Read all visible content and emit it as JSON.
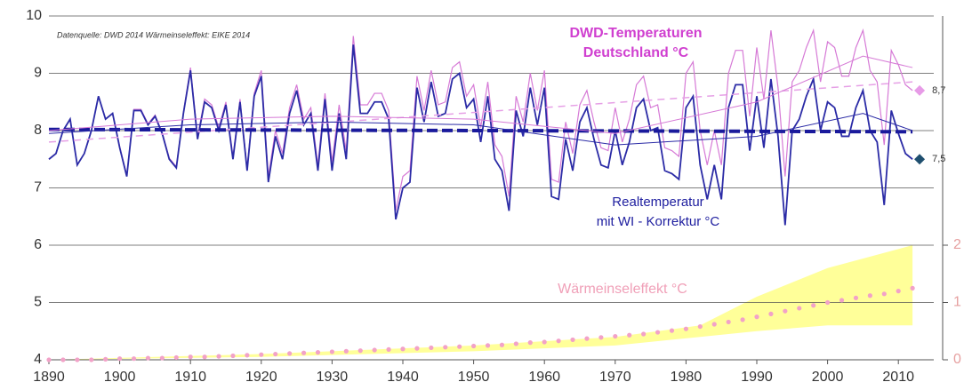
{
  "chart_data": {
    "type": "line",
    "source_note": "Datenquelle: DWD 2014 Wärmeinseleffekt: EIKE 2014",
    "xlim": [
      1890,
      2015
    ],
    "xticks": [
      1890,
      1900,
      1910,
      1920,
      1930,
      1940,
      1950,
      1960,
      1970,
      1980,
      1990,
      2000,
      2010
    ],
    "ylim": [
      4,
      10
    ],
    "yticks": [
      4,
      5,
      6,
      7,
      8,
      9,
      10
    ],
    "y2lim": [
      0,
      6
    ],
    "y2ticks": [
      0,
      1,
      2
    ],
    "grid": true,
    "x": [
      1890,
      1891,
      1892,
      1893,
      1894,
      1895,
      1896,
      1897,
      1898,
      1899,
      1900,
      1901,
      1902,
      1903,
      1904,
      1905,
      1906,
      1907,
      1908,
      1909,
      1910,
      1911,
      1912,
      1913,
      1914,
      1915,
      1916,
      1917,
      1918,
      1919,
      1920,
      1921,
      1922,
      1923,
      1924,
      1925,
      1926,
      1927,
      1928,
      1929,
      1930,
      1931,
      1932,
      1933,
      1934,
      1935,
      1936,
      1937,
      1938,
      1939,
      1940,
      1941,
      1942,
      1943,
      1944,
      1945,
      1946,
      1947,
      1948,
      1949,
      1950,
      1951,
      1952,
      1953,
      1954,
      1955,
      1956,
      1957,
      1958,
      1959,
      1960,
      1961,
      1962,
      1963,
      1964,
      1965,
      1966,
      1967,
      1968,
      1969,
      1970,
      1971,
      1972,
      1973,
      1974,
      1975,
      1976,
      1977,
      1978,
      1979,
      1980,
      1981,
      1982,
      1983,
      1984,
      1985,
      1986,
      1987,
      1988,
      1989,
      1990,
      1991,
      1992,
      1993,
      1994,
      1995,
      1996,
      1997,
      1998,
      1999,
      2000,
      2001,
      2002,
      2003,
      2004,
      2005,
      2006,
      2007,
      2008,
      2009,
      2010,
      2011,
      2012
    ],
    "series": [
      {
        "name": [
          "DWD-Temperaturen",
          "Deutschland °C"
        ],
        "color": "#d67ad6",
        "values": [
          7.5,
          7.6,
          8.0,
          8.2,
          7.4,
          7.6,
          8.0,
          8.6,
          8.2,
          8.3,
          7.72,
          7.22,
          8.37,
          8.37,
          8.12,
          8.27,
          7.97,
          7.52,
          7.37,
          8.32,
          9.1,
          7.9,
          8.55,
          8.45,
          8.05,
          8.5,
          7.55,
          8.55,
          7.35,
          8.65,
          9.05,
          7.2,
          8.0,
          7.6,
          8.4,
          8.8,
          8.2,
          8.4,
          7.4,
          8.65,
          7.45,
          8.45,
          7.65,
          9.65,
          8.45,
          8.45,
          8.65,
          8.65,
          8.35,
          6.6,
          7.2,
          7.3,
          8.95,
          8.35,
          9.05,
          8.45,
          8.5,
          9.1,
          9.2,
          8.6,
          8.8,
          8.05,
          8.85,
          7.75,
          7.55,
          6.85,
          8.6,
          8.15,
          9.0,
          8.35,
          9.05,
          7.15,
          7.1,
          8.15,
          7.6,
          8.45,
          8.7,
          8.15,
          7.7,
          7.65,
          8.4,
          7.8,
          8.2,
          8.8,
          8.95,
          8.4,
          8.45,
          7.7,
          7.65,
          7.55,
          9.0,
          9.2,
          8.0,
          7.4,
          8.0,
          7.4,
          9.0,
          9.4,
          9.4,
          8.25,
          9.45,
          8.55,
          9.75,
          8.75,
          7.2,
          8.85,
          9.05,
          9.45,
          9.75,
          8.85,
          9.55,
          9.45,
          8.95,
          8.95,
          9.45,
          9.75,
          9.05,
          8.85,
          7.75,
          9.4,
          9.15,
          8.8,
          8.7
        ]
      },
      {
        "name": [
          "Realtemperatur",
          "mit WI - Korrektur °C"
        ],
        "color": "#2b2ba6",
        "values": [
          7.5,
          7.6,
          8.0,
          8.2,
          7.4,
          7.6,
          8.0,
          8.6,
          8.2,
          8.3,
          7.7,
          7.2,
          8.35,
          8.35,
          8.1,
          8.25,
          7.95,
          7.5,
          7.35,
          8.3,
          9.05,
          7.85,
          8.5,
          8.4,
          8.0,
          8.45,
          7.5,
          8.5,
          7.3,
          8.6,
          8.95,
          7.1,
          7.9,
          7.5,
          8.3,
          8.7,
          8.1,
          8.3,
          7.3,
          8.55,
          7.3,
          8.3,
          7.5,
          9.5,
          8.3,
          8.3,
          8.5,
          8.5,
          8.2,
          6.45,
          7.0,
          7.1,
          8.75,
          8.15,
          8.85,
          8.25,
          8.3,
          8.9,
          9.0,
          8.4,
          8.55,
          7.8,
          8.6,
          7.5,
          7.3,
          6.6,
          8.35,
          7.9,
          8.75,
          8.1,
          8.75,
          6.85,
          6.8,
          7.85,
          7.3,
          8.15,
          8.4,
          7.85,
          7.4,
          7.35,
          8.0,
          7.4,
          7.8,
          8.4,
          8.55,
          8.0,
          8.05,
          7.3,
          7.25,
          7.15,
          8.4,
          8.6,
          7.4,
          6.8,
          7.4,
          6.8,
          8.4,
          8.8,
          8.8,
          7.65,
          8.6,
          7.7,
          8.9,
          7.9,
          6.35,
          8.0,
          8.2,
          8.6,
          8.9,
          8.0,
          8.5,
          8.4,
          7.9,
          7.9,
          8.4,
          8.7,
          8.0,
          7.8,
          6.7,
          8.35,
          7.95,
          7.6,
          7.5
        ]
      }
    ],
    "wi": {
      "name": "Wärmeinseleffekt °C",
      "color": "#f2a2c8",
      "axis": "y2",
      "x": [
        1890,
        1892,
        1894,
        1896,
        1898,
        1900,
        1902,
        1904,
        1906,
        1908,
        1910,
        1912,
        1914,
        1916,
        1918,
        1920,
        1922,
        1924,
        1926,
        1928,
        1930,
        1932,
        1934,
        1936,
        1938,
        1940,
        1942,
        1944,
        1946,
        1948,
        1950,
        1952,
        1954,
        1956,
        1958,
        1960,
        1962,
        1964,
        1966,
        1968,
        1970,
        1972,
        1974,
        1976,
        1978,
        1980,
        1982,
        1984,
        1986,
        1988,
        1990,
        1992,
        1994,
        1996,
        1998,
        2000,
        2002,
        2004,
        2006,
        2008,
        2010,
        2012
      ],
      "values": [
        0,
        0,
        0,
        0,
        0.01,
        0.02,
        0.02,
        0.03,
        0.03,
        0.04,
        0.05,
        0.05,
        0.06,
        0.07,
        0.08,
        0.09,
        0.1,
        0.11,
        0.12,
        0.13,
        0.14,
        0.15,
        0.16,
        0.17,
        0.18,
        0.19,
        0.2,
        0.21,
        0.22,
        0.23,
        0.24,
        0.25,
        0.26,
        0.28,
        0.3,
        0.31,
        0.33,
        0.35,
        0.37,
        0.39,
        0.41,
        0.43,
        0.45,
        0.48,
        0.51,
        0.54,
        0.58,
        0.62,
        0.66,
        0.7,
        0.75,
        0.8,
        0.85,
        0.9,
        0.95,
        1.0,
        1.04,
        1.08,
        1.12,
        1.15,
        1.2,
        1.25
      ],
      "band": {
        "color": "#ffff99",
        "x": [
          1890,
          1920,
          1950,
          1970,
          1982,
          1990,
          2000,
          2012
        ],
        "lower": [
          0,
          0.05,
          0.15,
          0.25,
          0.4,
          0.5,
          0.6,
          0.6
        ],
        "upper": [
          0,
          0.1,
          0.25,
          0.4,
          0.6,
          1.1,
          1.6,
          2.0
        ]
      }
    },
    "trends": [
      {
        "color": "#e6a0e6",
        "dash": "8 6",
        "width": 1.5,
        "x": [
          1890,
          2012
        ],
        "values": [
          7.8,
          8.85
        ]
      },
      {
        "color": "#1a1a9c",
        "dash": "12 5",
        "width": 4,
        "x": [
          1890,
          2012
        ],
        "values": [
          8.02,
          7.98
        ]
      },
      {
        "color": "#d67ad6",
        "dash": "none",
        "width": 1,
        "x": [
          1890,
          1910,
          1930,
          1950,
          1970,
          1990,
          2005,
          2012
        ],
        "values": [
          8.0,
          8.2,
          8.25,
          8.2,
          7.95,
          8.5,
          9.3,
          9.1
        ]
      },
      {
        "color": "#2b2ba6",
        "dash": "none",
        "width": 1,
        "x": [
          1890,
          1910,
          1930,
          1950,
          1970,
          1990,
          2005,
          2012
        ],
        "values": [
          7.95,
          8.1,
          8.15,
          8.1,
          7.75,
          7.9,
          8.3,
          8.0
        ]
      }
    ],
    "end_markers": [
      {
        "x": 2013,
        "value": 8.7,
        "label": "8,7",
        "color": "#e79be7"
      },
      {
        "x": 2013,
        "value": 7.5,
        "label": "7,5",
        "color": "#1f4f6f"
      }
    ]
  }
}
